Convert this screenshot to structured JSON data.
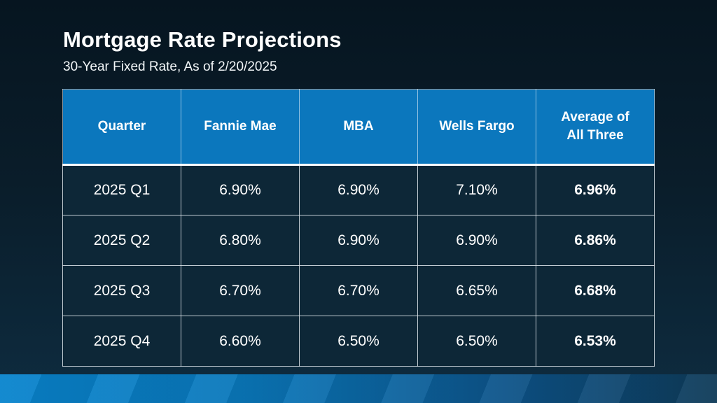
{
  "slide": {
    "title": "Mortgage Rate Projections",
    "subtitle": "30-Year Fixed Rate, As of 2/20/2025"
  },
  "chart_data": {
    "type": "table",
    "title": "Mortgage Rate Projections",
    "subtitle": "30-Year Fixed Rate, As of 2/20/2025",
    "columns": [
      "Quarter",
      "Fannie Mae",
      "MBA",
      "Wells Fargo",
      "Average of All Three"
    ],
    "rows": [
      [
        "2025 Q1",
        "6.90%",
        "6.90%",
        "7.10%",
        "6.96%"
      ],
      [
        "2025 Q2",
        "6.80%",
        "6.90%",
        "6.90%",
        "6.86%"
      ],
      [
        "2025 Q3",
        "6.70%",
        "6.70%",
        "6.65%",
        "6.68%"
      ],
      [
        "2025 Q4",
        "6.60%",
        "6.50%",
        "6.50%",
        "6.53%"
      ]
    ],
    "notes": "Average-of-all-three column rendered bold; header row blue with white underline"
  },
  "colors": {
    "header_bg": "#0b77bd",
    "cell_bg": "#0d2737",
    "slide_bg_top": "#061520",
    "slide_bg_bottom": "#0e2c40",
    "accent_bar_left": "#0884cd",
    "accent_bar_right": "#0e3a58",
    "text": "#ffffff"
  }
}
